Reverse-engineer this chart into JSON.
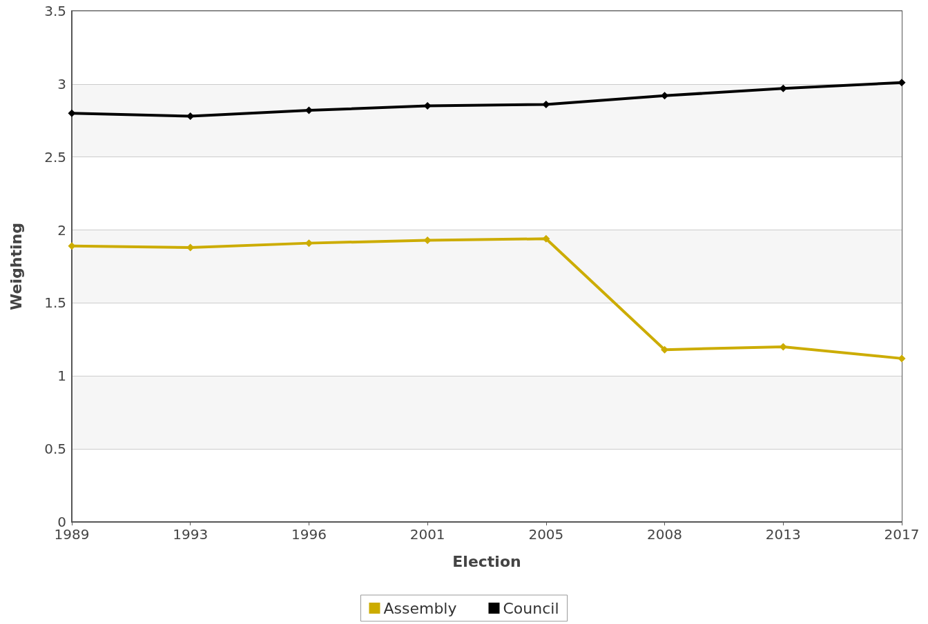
{
  "chart_data": {
    "type": "line",
    "xlabel": "Election",
    "ylabel": "Weighting",
    "categories": [
      "1989",
      "1993",
      "1996",
      "2001",
      "2005",
      "2008",
      "2013",
      "2017"
    ],
    "series": [
      {
        "name": "Assembly",
        "color": "#ccac00",
        "values": [
          1.89,
          1.88,
          1.91,
          1.93,
          1.94,
          1.18,
          1.2,
          1.12
        ]
      },
      {
        "name": "Council",
        "color": "#000000",
        "values": [
          2.8,
          2.78,
          2.82,
          2.85,
          2.86,
          2.92,
          2.97,
          3.01
        ]
      }
    ],
    "ylim": [
      0,
      3.5
    ],
    "yticks": [
      0,
      0.5,
      1,
      1.5,
      2,
      2.5,
      3,
      3.5
    ],
    "grid": "y",
    "legend": "bottom",
    "marker": "diamond"
  }
}
